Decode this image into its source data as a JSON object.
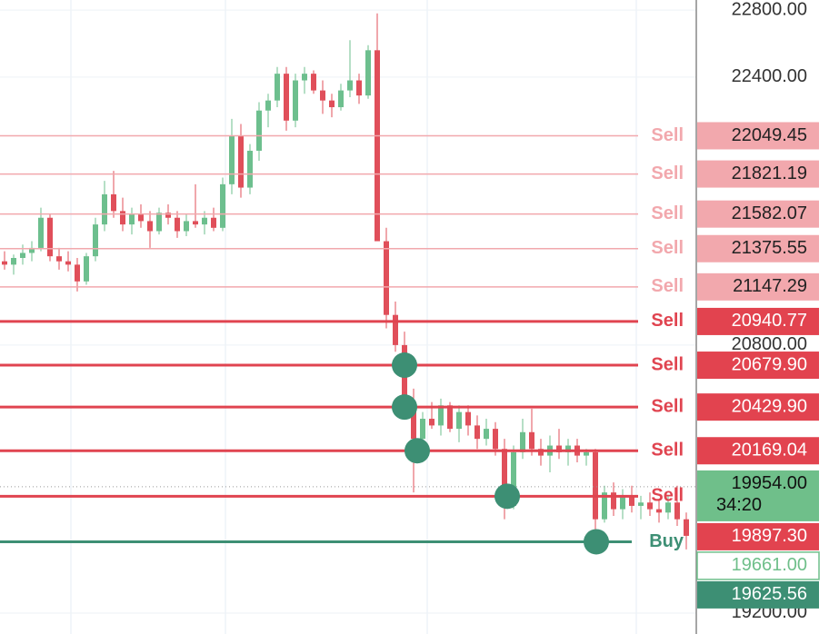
{
  "chart_data": {
    "type": "candlestick",
    "ylim": [
      19075,
      22860
    ],
    "yticks": [
      {
        "value": 22800,
        "label": "22800.00"
      },
      {
        "value": 22400,
        "label": "22400.00"
      },
      {
        "value": 20800,
        "label": "20800.00"
      },
      {
        "value": 19200,
        "label": "19200.00"
      }
    ],
    "grid": true,
    "up_color": "#6dbf8e",
    "down_color": "#e04f5a",
    "ohlc": [
      [
        21300,
        21360,
        21250,
        21280
      ],
      [
        21280,
        21340,
        21220,
        21320
      ],
      [
        21320,
        21400,
        21280,
        21350
      ],
      [
        21350,
        21420,
        21300,
        21380
      ],
      [
        21380,
        21620,
        21360,
        21560
      ],
      [
        21560,
        21580,
        21300,
        21330
      ],
      [
        21330,
        21380,
        21250,
        21300
      ],
      [
        21300,
        21360,
        21240,
        21280
      ],
      [
        21280,
        21320,
        21120,
        21180
      ],
      [
        21180,
        21350,
        21160,
        21330
      ],
      [
        21330,
        21560,
        21300,
        21520
      ],
      [
        21520,
        21780,
        21480,
        21700
      ],
      [
        21700,
        21840,
        21560,
        21600
      ],
      [
        21600,
        21680,
        21480,
        21520
      ],
      [
        21520,
        21620,
        21460,
        21580
      ],
      [
        21580,
        21640,
        21500,
        21540
      ],
      [
        21540,
        21600,
        21380,
        21480
      ],
      [
        21480,
        21620,
        21460,
        21590
      ],
      [
        21590,
        21640,
        21520,
        21560
      ],
      [
        21560,
        21600,
        21440,
        21480
      ],
      [
        21480,
        21580,
        21450,
        21540
      ],
      [
        21540,
        21760,
        21500,
        21520
      ],
      [
        21520,
        21600,
        21460,
        21560
      ],
      [
        21560,
        21620,
        21480,
        21500
      ],
      [
        21500,
        21800,
        21480,
        21760
      ],
      [
        21760,
        22150,
        21700,
        22050
      ],
      [
        22050,
        22120,
        21680,
        21740
      ],
      [
        21740,
        22000,
        21700,
        21960
      ],
      [
        21960,
        22250,
        21900,
        22200
      ],
      [
        22200,
        22300,
        22100,
        22260
      ],
      [
        22260,
        22460,
        22220,
        22420
      ],
      [
        22420,
        22460,
        22080,
        22140
      ],
      [
        22140,
        22420,
        22100,
        22380
      ],
      [
        22380,
        22460,
        22300,
        22420
      ],
      [
        22420,
        22440,
        22300,
        22320
      ],
      [
        22320,
        22380,
        22180,
        22260
      ],
      [
        22260,
        22300,
        22160,
        22220
      ],
      [
        22220,
        22360,
        22200,
        22320
      ],
      [
        22320,
        22620,
        22280,
        22380
      ],
      [
        22380,
        22420,
        22240,
        22290
      ],
      [
        22290,
        22590,
        22270,
        22560
      ],
      [
        22560,
        22780,
        21420,
        21420
      ],
      [
        21420,
        21500,
        20900,
        20980
      ],
      [
        20980,
        21060,
        20760,
        20800
      ],
      [
        20800,
        20880,
        20360,
        20460
      ],
      [
        20460,
        20540,
        19920,
        20240
      ],
      [
        20240,
        20400,
        20180,
        20360
      ],
      [
        20360,
        20460,
        20300,
        20320
      ],
      [
        20320,
        20480,
        20260,
        20440
      ],
      [
        20440,
        20460,
        20280,
        20300
      ],
      [
        20300,
        20440,
        20220,
        20400
      ],
      [
        20400,
        20440,
        20260,
        20320
      ],
      [
        20320,
        20380,
        20180,
        20240
      ],
      [
        20240,
        20360,
        20200,
        20300
      ],
      [
        20300,
        20340,
        20140,
        20180
      ],
      [
        20180,
        20240,
        19760,
        19840
      ],
      [
        19840,
        20200,
        19820,
        20160
      ],
      [
        20160,
        20360,
        20120,
        20280
      ],
      [
        20280,
        20420,
        20140,
        20180
      ],
      [
        20180,
        20240,
        20080,
        20140
      ],
      [
        20140,
        20260,
        20040,
        20200
      ],
      [
        20200,
        20300,
        20120,
        20160
      ],
      [
        20160,
        20240,
        20080,
        20200
      ],
      [
        20200,
        20240,
        20100,
        20140
      ],
      [
        20140,
        20180,
        20080,
        20160
      ],
      [
        20160,
        20180,
        19700,
        19760
      ],
      [
        19760,
        19960,
        19740,
        19920
      ],
      [
        19920,
        19980,
        19780,
        19820
      ],
      [
        19820,
        19940,
        19760,
        19900
      ],
      [
        19900,
        19960,
        19800,
        19840
      ],
      [
        19840,
        19900,
        19760,
        19860
      ],
      [
        19860,
        19920,
        19780,
        19820
      ],
      [
        19820,
        19880,
        19740,
        19800
      ],
      [
        19800,
        19900,
        19760,
        19860
      ],
      [
        19860,
        19960,
        19720,
        19760
      ],
      [
        19760,
        19800,
        19580,
        19661
      ]
    ],
    "orders": [
      {
        "side": "Sell",
        "price": 22049.45,
        "price_label": "22049.45",
        "active": false,
        "filled": false
      },
      {
        "side": "Sell",
        "price": 21821.19,
        "price_label": "21821.19",
        "active": false,
        "filled": false
      },
      {
        "side": "Sell",
        "price": 21582.07,
        "price_label": "21582.07",
        "active": false,
        "filled": false
      },
      {
        "side": "Sell",
        "price": 21375.55,
        "price_label": "21375.55",
        "active": false,
        "filled": false
      },
      {
        "side": "Sell",
        "price": 21147.29,
        "price_label": "21147.29",
        "active": false,
        "filled": false
      },
      {
        "side": "Sell",
        "price": 20940.77,
        "price_label": "20940.77",
        "active": true,
        "filled": false
      },
      {
        "side": "Sell",
        "price": 20679.9,
        "price_label": "20679.90",
        "active": true,
        "filled": true
      },
      {
        "side": "Sell",
        "price": 20429.9,
        "price_label": "20429.90",
        "active": true,
        "filled": true
      },
      {
        "side": "Sell",
        "price": 20169.04,
        "price_label": "20169.04",
        "active": true,
        "filled": true
      },
      {
        "side": "Sell",
        "price": 19897.3,
        "price_label": "19897.30",
        "active": true,
        "filled": true
      },
      {
        "side": "Buy",
        "price": 19625.56,
        "price_label": "19625.56",
        "active": true,
        "filled": true
      }
    ],
    "current": {
      "price": 19954,
      "price_label": "19954.00",
      "countdown": "34:20"
    },
    "last": {
      "price": 19661,
      "price_label": "19661.00"
    }
  }
}
